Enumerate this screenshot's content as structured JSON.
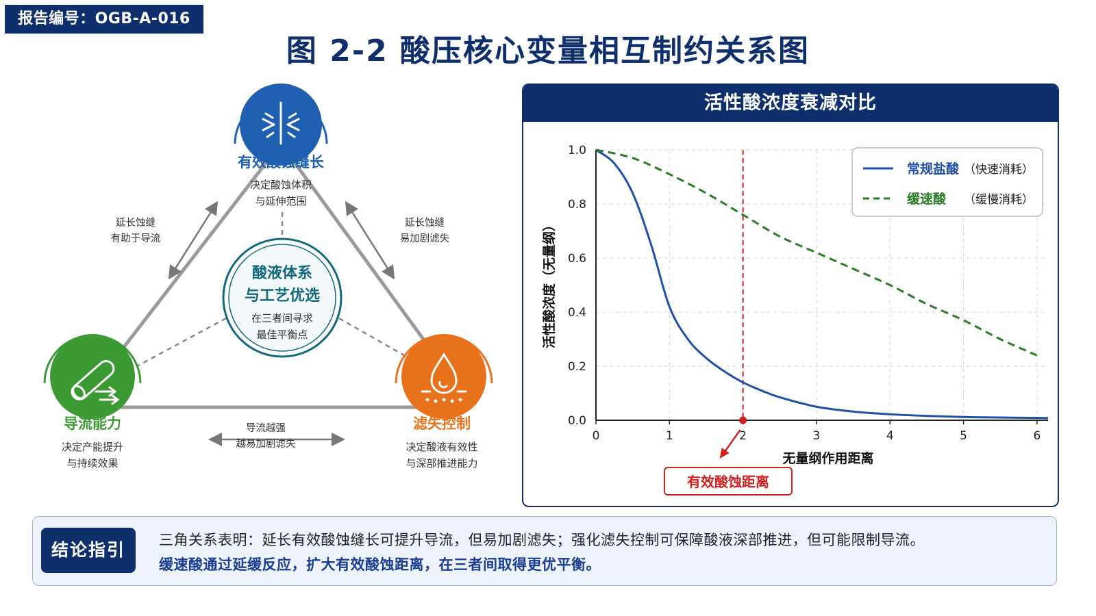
{
  "report_id": "报告编号：OGB-A-016",
  "title": "图 2-2  酸压核心变量相互制约关系图",
  "triangle": {
    "top": {
      "title": "有效酸蚀缝长",
      "sub1": "决定酸蚀体积",
      "sub2": "与延伸范围",
      "color": "#1f5fb0",
      "icon": "fracture-icon"
    },
    "left": {
      "title": "导流能力",
      "sub1": "决定产能提升",
      "sub2": "与持续效果",
      "color": "#3c9a35",
      "icon": "pipe-flow-icon"
    },
    "right": {
      "title": "滤失控制",
      "sub1": "决定酸液有效性",
      "sub2": "与深部推进能力",
      "color": "#e8721c",
      "icon": "droplet-icon"
    },
    "center": {
      "line1": "酸液体系",
      "line2": "与工艺优选",
      "sub1": "在三者间寻求",
      "sub2": "最佳平衡点",
      "color": "#12697e"
    },
    "edge_left": {
      "line1": "延长蚀缝",
      "line2": "有助于导流"
    },
    "edge_right": {
      "line1": "延长蚀缝",
      "line2": "易加剧滤失"
    },
    "edge_bottom": {
      "line1": "导流越强",
      "line2": "越易加剧滤失"
    }
  },
  "chart_data": {
    "type": "line",
    "title": "活性酸浓度衰减对比",
    "xlabel": "无量纲作用距离",
    "ylabel": "活性酸浓度（无量纲）",
    "xlim": [
      0,
      6.15
    ],
    "ylim": [
      0,
      1.0
    ],
    "x_ticks": [
      "0",
      "1",
      "2",
      "3",
      "4",
      "5",
      "6"
    ],
    "y_ticks": [
      "0.0",
      "0.2",
      "0.4",
      "0.6",
      "0.8",
      "1.0"
    ],
    "grid": true,
    "legend_position": "top-right",
    "series": [
      {
        "name": "常规盐酸",
        "note": "（快速消耗）",
        "color": "#1f4fa8",
        "style": "solid",
        "x": [
          0,
          0.25,
          0.5,
          0.75,
          1.0,
          1.25,
          1.5,
          1.75,
          2.0,
          2.25,
          2.5,
          3.0,
          3.5,
          4.0,
          4.5,
          5.0,
          5.5,
          6.15
        ],
        "y": [
          1.0,
          0.95,
          0.84,
          0.65,
          0.42,
          0.3,
          0.23,
          0.18,
          0.14,
          0.11,
          0.085,
          0.05,
          0.032,
          0.022,
          0.016,
          0.012,
          0.01,
          0.008
        ]
      },
      {
        "name": "缓速酸",
        "note": "（缓慢消耗）",
        "color": "#2a7a26",
        "style": "dashed",
        "x": [
          0,
          0.5,
          1.0,
          1.5,
          2.0,
          2.5,
          3.0,
          3.5,
          4.0,
          4.5,
          5.0,
          5.5,
          6.0
        ],
        "y": [
          1.0,
          0.97,
          0.91,
          0.84,
          0.76,
          0.68,
          0.62,
          0.56,
          0.5,
          0.43,
          0.37,
          0.3,
          0.24
        ]
      }
    ],
    "marker": {
      "x": 2,
      "label": "有效酸蚀距离",
      "color": "#d02020"
    }
  },
  "conclusion": {
    "badge": "结论指引",
    "line1": "三角关系表明：延长有效酸蚀缝长可提升导流，但易加剧滤失；强化滤失控制可保障酸液深部推进，但可能限制导流。",
    "line2": "缓速酸通过延缓反应，扩大有效酸蚀距离，在三者间取得更优平衡。"
  }
}
